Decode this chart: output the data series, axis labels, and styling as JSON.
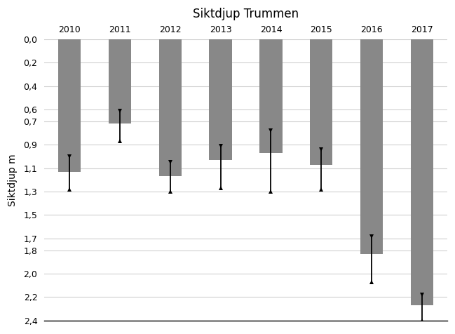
{
  "title": "Siktdjup Trummen",
  "ylabel": "Siktdjup m",
  "categories": [
    "2010",
    "2011",
    "2012",
    "2013",
    "2014",
    "2015",
    "2016",
    "2017"
  ],
  "bar_tops": [
    1.13,
    0.72,
    1.17,
    1.03,
    0.97,
    1.07,
    1.83,
    2.27
  ],
  "error_top": [
    1.0,
    0.61,
    1.05,
    0.91,
    0.78,
    0.94,
    1.68,
    2.18
  ],
  "error_bottom": [
    1.28,
    0.87,
    1.3,
    1.27,
    1.3,
    1.28,
    2.07,
    2.4
  ],
  "bar_color": "#888888",
  "error_color": "#000000",
  "ylim_min": 0.0,
  "ylim_max": 2.4,
  "yticks": [
    0.0,
    0.2,
    0.4,
    0.6,
    0.7,
    0.9,
    1.1,
    1.3,
    1.5,
    1.7,
    1.8,
    2.0,
    2.2,
    2.4
  ],
  "ytick_labels": [
    "0,0",
    "0,2",
    "0,4",
    "0,6",
    "0,7",
    "0,9",
    "1,1",
    "1,3",
    "1,5",
    "1,7",
    "1,8",
    "2,0",
    "2,2",
    "2,4"
  ],
  "background_color": "#ffffff",
  "grid_color": "#d0d0d0",
  "title_fontsize": 12,
  "axis_label_fontsize": 10,
  "tick_fontsize": 9,
  "bar_width": 0.45
}
